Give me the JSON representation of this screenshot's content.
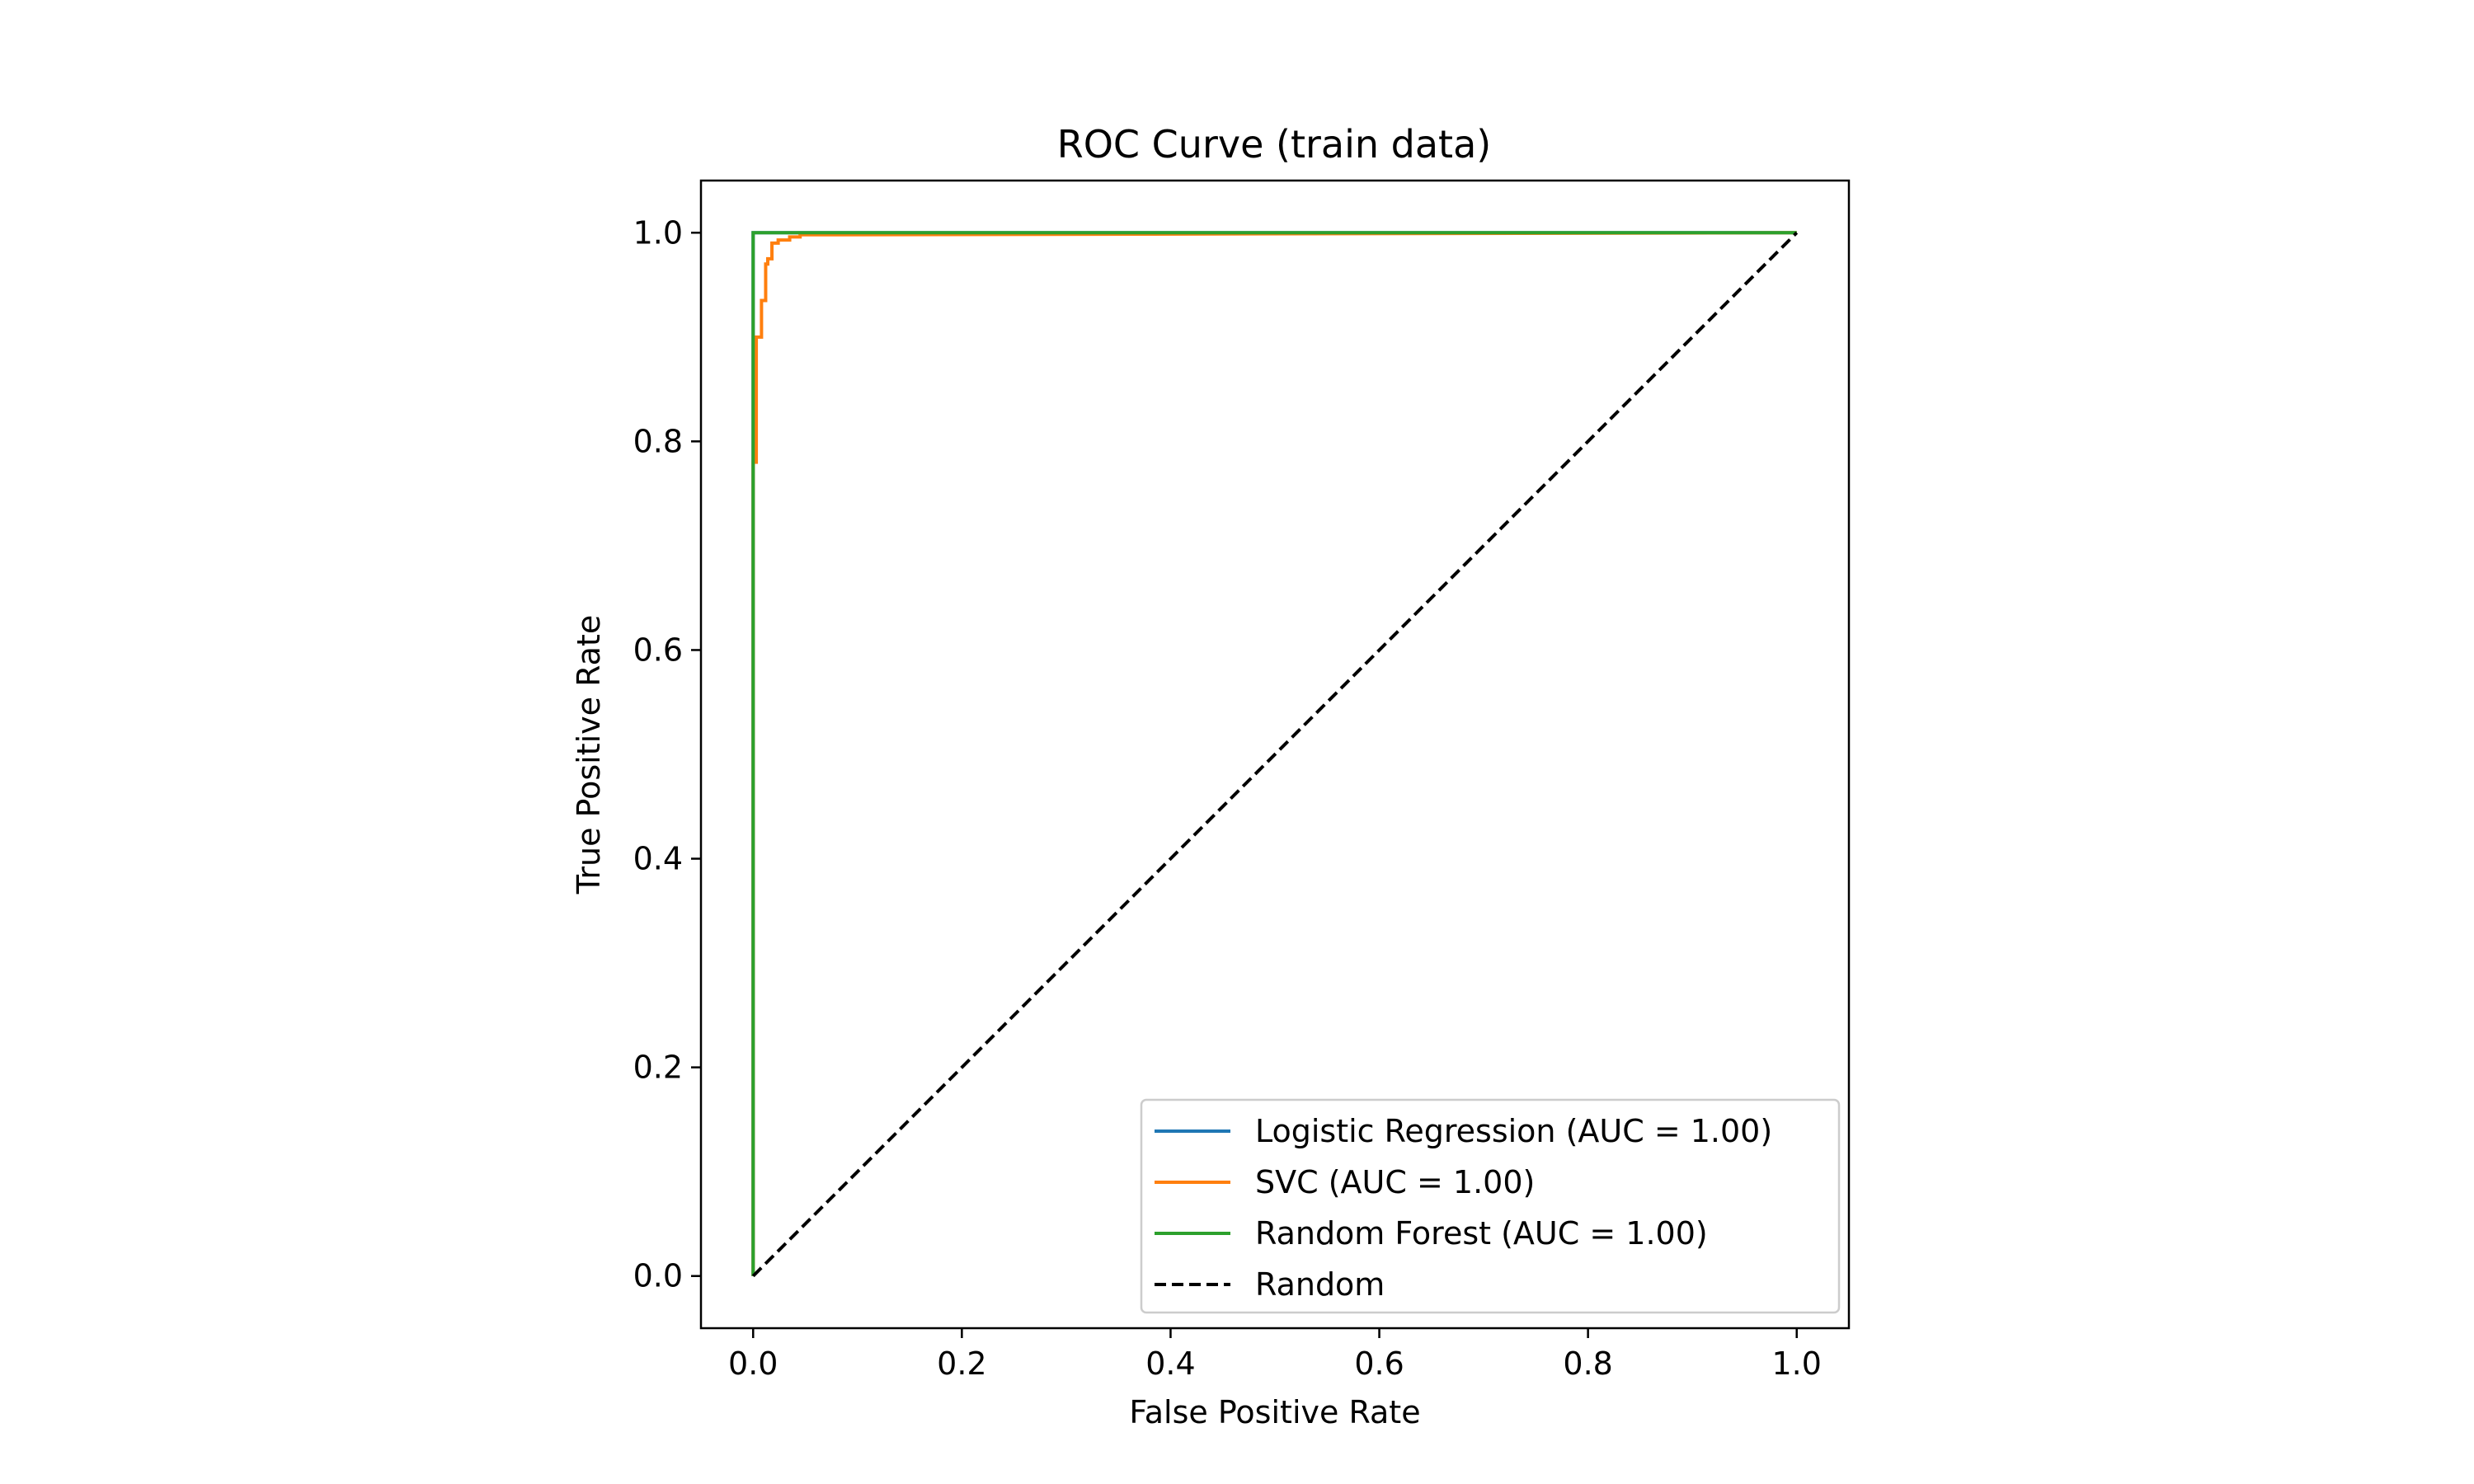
{
  "chart_data": {
    "type": "line",
    "title": "ROC Curve (train data)",
    "xlabel": "False Positive Rate",
    "ylabel": "True Positive Rate",
    "xlim": [
      -0.05,
      1.05
    ],
    "ylim": [
      -0.05,
      1.05
    ],
    "xticks": [
      0.0,
      0.2,
      0.4,
      0.6,
      0.8,
      1.0
    ],
    "xtick_labels": [
      "0.0",
      "0.2",
      "0.4",
      "0.6",
      "0.8",
      "1.0"
    ],
    "yticks": [
      0.0,
      0.2,
      0.4,
      0.6,
      0.8,
      1.0
    ],
    "ytick_labels": [
      "0.0",
      "0.2",
      "0.4",
      "0.6",
      "0.8",
      "1.0"
    ],
    "grid": false,
    "legend_position": "lower-right",
    "series": [
      {
        "name": "Logistic Regression (AUC = 1.00)",
        "color": "#1f77b4",
        "dash": "solid",
        "x": [
          0.0,
          0.0,
          0.0,
          0.002,
          0.002,
          1.0
        ],
        "y": [
          0.0,
          0.78,
          1.0,
          1.0,
          1.0,
          1.0
        ]
      },
      {
        "name": "SVC (AUC = 1.00)",
        "color": "#ff7f0e",
        "dash": "solid",
        "x": [
          0.0,
          0.0,
          0.003,
          0.003,
          0.008,
          0.008,
          0.012,
          0.012,
          0.014,
          0.014,
          0.018,
          0.018,
          0.024,
          0.024,
          0.035,
          0.035,
          0.045,
          0.045,
          0.068,
          1.0
        ],
        "y": [
          0.0,
          0.78,
          0.78,
          0.9,
          0.9,
          0.935,
          0.935,
          0.97,
          0.97,
          0.975,
          0.975,
          0.99,
          0.99,
          0.993,
          0.993,
          0.996,
          0.996,
          0.998,
          0.998,
          1.0
        ]
      },
      {
        "name": "Random Forest (AUC = 1.00)",
        "color": "#2ca02c",
        "dash": "solid",
        "x": [
          0.0,
          0.0,
          1.0
        ],
        "y": [
          0.0,
          1.0,
          1.0
        ]
      },
      {
        "name": "Random",
        "color": "#000000",
        "dash": "dashed",
        "x": [
          0.0,
          1.0
        ],
        "y": [
          0.0,
          1.0
        ]
      }
    ]
  }
}
